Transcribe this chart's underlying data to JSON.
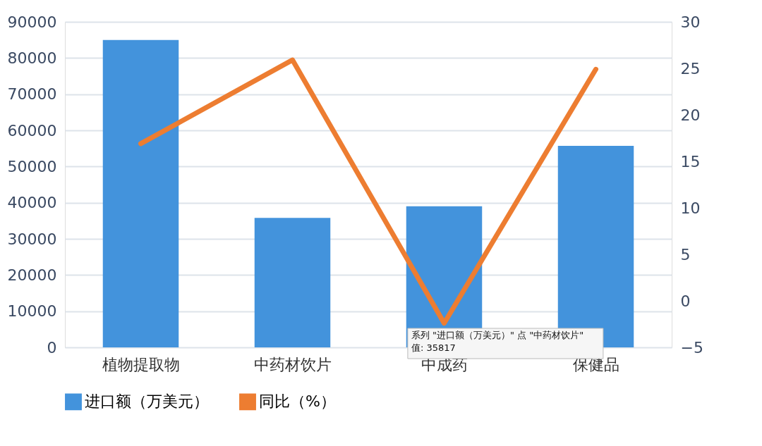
{
  "chart_data": {
    "type": "bar",
    "categories": [
      "植物提取物",
      "中药材饮片",
      "中成药",
      "保健品"
    ],
    "series": [
      {
        "name": "进口额（万美元）",
        "color": "#4393dc",
        "values": [
          85000,
          35817,
          39000,
          55700
        ]
      },
      {
        "name": "同比（%）",
        "type": "line",
        "axis": "y2",
        "color": "#ed7d31",
        "values": [
          16.9,
          25.9,
          -2.4,
          24.9
        ]
      }
    ],
    "ylim": [
      0,
      90000
    ],
    "yticks": [
      0,
      10000,
      20000,
      30000,
      40000,
      50000,
      60000,
      70000,
      80000,
      90000
    ],
    "y2lim": [
      -5,
      30
    ],
    "y2ticks": [
      -5,
      0,
      5,
      10,
      15,
      20,
      25,
      30
    ],
    "grid": "y",
    "legend": "bottom",
    "line_style": "solid",
    "annotations": [
      "系列 \"进口额（万美元）\" 点 \"中药材饮片\"",
      "值: 35817"
    ]
  }
}
